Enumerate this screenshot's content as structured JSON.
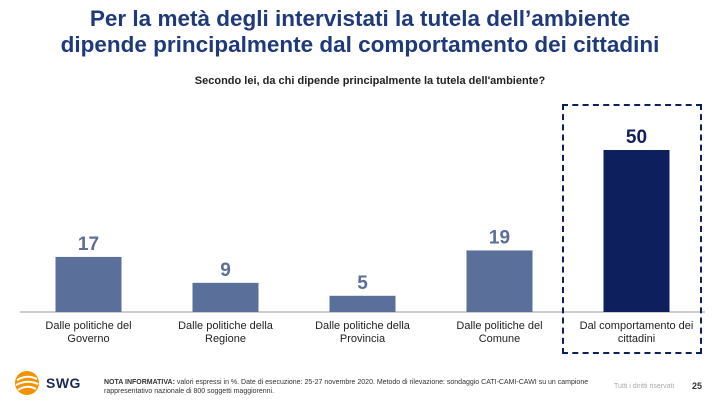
{
  "title": {
    "line1": "Per la metà degli intervistati la tutela dell’ambiente",
    "line2": "dipende principalmente dal comportamento dei cittadini"
  },
  "question": "Secondo lei, da chi dipende principalmente la tutela dell'ambiente?",
  "colors": {
    "title": "#1f3a7a",
    "bar": "#5a6f9a",
    "bar_highlight": "#0d1f5c",
    "axis": "#999999"
  },
  "chart_data": {
    "type": "bar",
    "categories": [
      "Dalle politiche del Governo",
      "Dalle politiche della Regione",
      "Dalle politiche della Provincia",
      "Dalle politiche del Comune",
      "Dal comportamento dei cittadini"
    ],
    "values": [
      17,
      9,
      5,
      19,
      50
    ],
    "value_labels": [
      "17",
      "9",
      "5",
      "19",
      "50"
    ],
    "highlighted_category": "Dal comportamento dei cittadini",
    "ylim": [
      0,
      50
    ],
    "grid": false,
    "legend": "none"
  },
  "footer": {
    "logo": "SWG",
    "note_label": "NOTA INFORMATIVA:",
    "note_text": " valori espressi in %. Date di esecuzione: 25-27 novembre 2020. Metodo di rilevazione: sondaggio CATI-CAMI-CAWI su un campione rappresentativo nazionale di 800 soggetti maggiorenni.",
    "rights": "Tutti i diritti riservati",
    "page": "25"
  }
}
